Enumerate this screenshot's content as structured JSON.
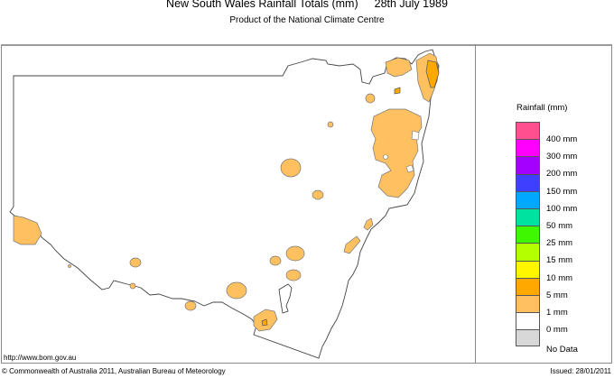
{
  "header": {
    "title": "New South Wales Rainfall Totals (mm)",
    "date": "28th July 1989",
    "subtitle": "Product of the National Climate Centre"
  },
  "footer": {
    "url": "http://www.bom.gov.au",
    "copyright": "© Commonwealth of Australia 2011, Australian Bureau of Meteorology",
    "issued": "Issued: 28/01/2011"
  },
  "legend": {
    "title": "Rainfall (mm)",
    "swatches": [
      {
        "color": "#ff4f8f"
      },
      {
        "color": "#ff00ff"
      },
      {
        "color": "#a300ff"
      },
      {
        "color": "#3f3fff"
      },
      {
        "color": "#00a8ff"
      },
      {
        "color": "#00e3a0"
      },
      {
        "color": "#3ff700"
      },
      {
        "color": "#b4ff00"
      },
      {
        "color": "#fff600"
      },
      {
        "color": "#ffa900"
      },
      {
        "color": "#ffc060"
      },
      {
        "color": "#ffffff"
      },
      {
        "color": "#d8d8d8"
      }
    ],
    "labels": [
      "400 mm",
      "300 mm",
      "200 mm",
      "150 mm",
      "100 mm",
      "50 mm",
      "25 mm",
      "15 mm",
      "10 mm",
      "5 mm",
      "1 mm",
      "0 mm"
    ],
    "nodata_label": "No Data"
  },
  "map": {
    "region": "New South Wales",
    "fill_1mm": "#ffc060",
    "fill_5mm": "#ffa900",
    "outline": "#555555"
  }
}
